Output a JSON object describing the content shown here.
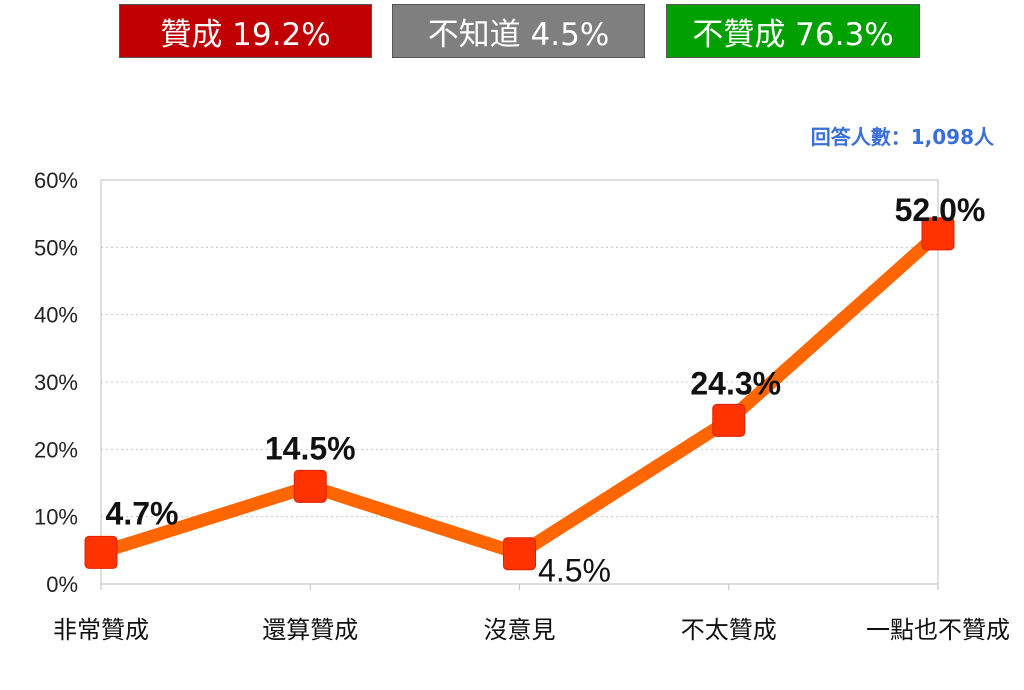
{
  "summary": [
    {
      "label": "贊成 19.2%",
      "color": "#c00000"
    },
    {
      "label": "不知道 4.5%",
      "color": "#7f7f7f"
    },
    {
      "label": "不贊成 76.3%",
      "color": "#00a000"
    }
  ],
  "respondents": "回答人數：1,098人",
  "chart_data": {
    "type": "line",
    "categories": [
      "非常贊成",
      "還算贊成",
      "沒意見",
      "不太贊成",
      "一點也不贊成"
    ],
    "values": [
      4.7,
      14.5,
      4.5,
      24.3,
      52.0
    ],
    "data_labels": [
      "4.7%",
      "14.5%",
      "4.5%",
      "24.3%",
      "52.0%"
    ],
    "ylim": [
      0,
      60
    ],
    "yticks": [
      "0%",
      "10%",
      "20%",
      "30%",
      "40%",
      "50%",
      "60%"
    ],
    "line_color": "#ff6600",
    "marker_color": "#ff3300",
    "grid": true
  }
}
